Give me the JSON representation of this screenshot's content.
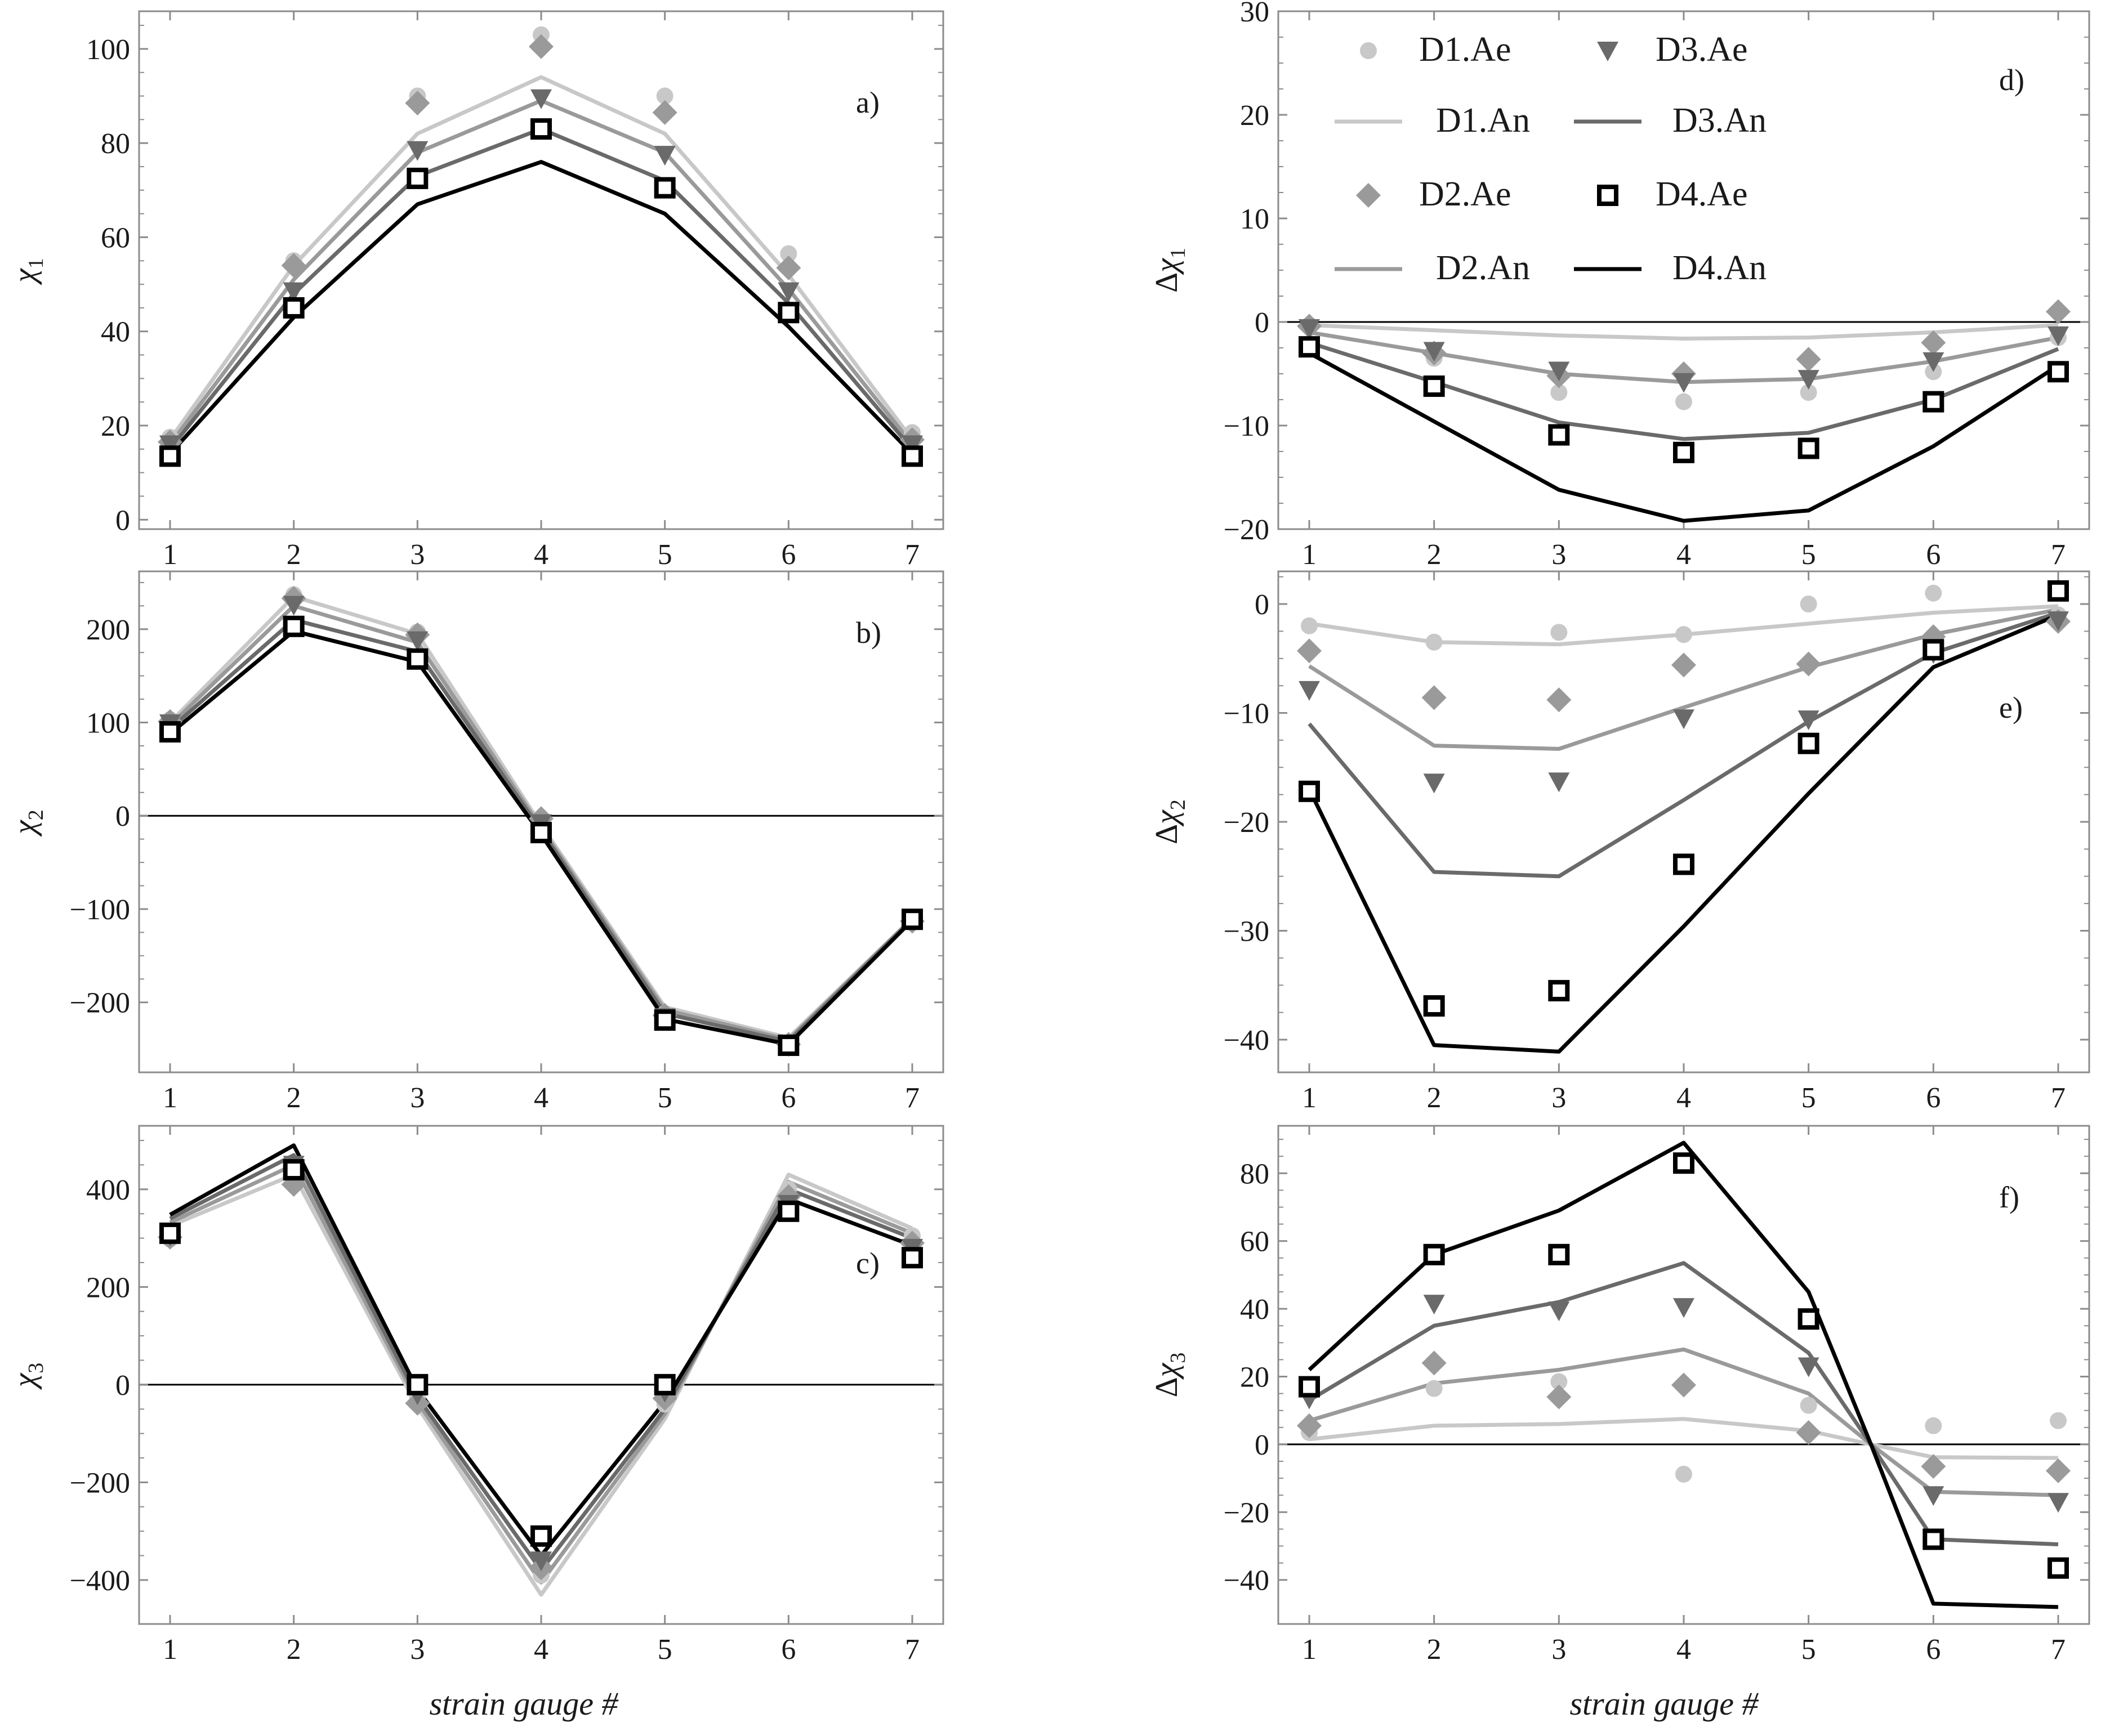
{
  "colors": {
    "D1": "#c8c8c8",
    "D2": "#9a9a9a",
    "D3": "#6a6a6a",
    "D4": "#000000",
    "frame": "#8c8c8c",
    "zero": "#000000"
  },
  "xlabel": "strain gauge #",
  "legend": [
    {
      "label": "D1.Ae",
      "series": "D1",
      "kind": "exp",
      "icon": "circle-marker-icon"
    },
    {
      "label": "D3.Ae",
      "series": "D3",
      "kind": "exp",
      "icon": "triangle-down-marker-icon"
    },
    {
      "label": "D1.An",
      "series": "D1",
      "kind": "ana",
      "icon": "line-icon"
    },
    {
      "label": "D3.An",
      "series": "D3",
      "kind": "ana",
      "icon": "line-icon"
    },
    {
      "label": "D2.Ae",
      "series": "D2",
      "kind": "exp",
      "icon": "diamond-marker-icon"
    },
    {
      "label": "D4.Ae",
      "series": "D4",
      "kind": "exp",
      "icon": "open-square-marker-icon"
    },
    {
      "label": "D2.An",
      "series": "D2",
      "kind": "ana",
      "icon": "line-icon"
    },
    {
      "label": "D4.An",
      "series": "D4",
      "kind": "ana",
      "icon": "line-icon"
    }
  ],
  "chart_data": [
    {
      "id": "a",
      "type": "line",
      "panel_tag": "a)",
      "ylabel_symbol": "χ",
      "ylabel_sub": "1",
      "ylabel_prefix": "",
      "x": [
        1,
        2,
        3,
        4,
        5,
        6,
        7
      ],
      "ylim": [
        -2,
        108
      ],
      "yticks": [
        0,
        20,
        40,
        60,
        80,
        100
      ],
      "zero_line": false,
      "series": [
        {
          "name": "D1.An",
          "key": "D1",
          "kind": "ana",
          "values": [
            17,
            54,
            82,
            94,
            82,
            52,
            17
          ]
        },
        {
          "name": "D2.An",
          "key": "D2",
          "kind": "ana",
          "values": [
            16,
            51,
            78,
            89,
            78,
            49,
            16
          ]
        },
        {
          "name": "D3.An",
          "key": "D3",
          "kind": "ana",
          "values": [
            15,
            48,
            73,
            83,
            72,
            46,
            15
          ]
        },
        {
          "name": "D4.An",
          "key": "D4",
          "kind": "ana",
          "values": [
            14,
            43,
            67,
            76,
            65,
            41,
            14
          ]
        },
        {
          "name": "D1.Ae",
          "key": "D1",
          "kind": "exp",
          "values": [
            17.5,
            55,
            90,
            103,
            90,
            56.5,
            18.5
          ]
        },
        {
          "name": "D2.Ae",
          "key": "D2",
          "kind": "exp",
          "values": [
            16.5,
            54,
            88.5,
            100.5,
            86.5,
            53.5,
            17
          ]
        },
        {
          "name": "D3.Ae",
          "key": "D3",
          "kind": "exp",
          "values": [
            16,
            48.5,
            78.5,
            89.5,
            77.5,
            48.5,
            16
          ]
        },
        {
          "name": "D4.Ae",
          "key": "D4",
          "kind": "exp",
          "values": [
            13.5,
            45,
            72.5,
            83,
            70.5,
            44,
            13.5
          ]
        }
      ]
    },
    {
      "id": "b",
      "type": "line",
      "panel_tag": "b)",
      "ylabel_symbol": "χ",
      "ylabel_sub": "2",
      "ylabel_prefix": "",
      "x": [
        1,
        2,
        3,
        4,
        5,
        6,
        7
      ],
      "ylim": [
        -275,
        262
      ],
      "yticks": [
        -200,
        -100,
        0,
        100,
        200
      ],
      "zero_line": true,
      "series": [
        {
          "name": "D1.An",
          "key": "D1",
          "kind": "ana",
          "values": [
            100,
            235,
            195,
            -10,
            -205,
            -238,
            -110
          ]
        },
        {
          "name": "D2.An",
          "key": "D2",
          "kind": "ana",
          "values": [
            97,
            225,
            186,
            -13,
            -208,
            -240,
            -110
          ]
        },
        {
          "name": "D3.An",
          "key": "D3",
          "kind": "ana",
          "values": [
            93,
            210,
            176,
            -16,
            -212,
            -242,
            -111
          ]
        },
        {
          "name": "D4.An",
          "key": "D4",
          "kind": "ana",
          "values": [
            88,
            198,
            165,
            -20,
            -218,
            -245,
            -112
          ]
        },
        {
          "name": "D1.Ae",
          "key": "D1",
          "kind": "exp",
          "values": [
            103,
            237,
            197,
            -4,
            -212,
            -245,
            -113
          ]
        },
        {
          "name": "D2.Ae",
          "key": "D2",
          "kind": "exp",
          "values": [
            101,
            233,
            194,
            -3,
            -214,
            -245,
            -113
          ]
        },
        {
          "name": "D3.Ae",
          "key": "D3",
          "kind": "exp",
          "values": [
            99,
            226,
            188,
            -8,
            -216,
            -246,
            -112
          ]
        },
        {
          "name": "D4.Ae",
          "key": "D4",
          "kind": "exp",
          "values": [
            90,
            203,
            168,
            -18,
            -219,
            -246,
            -111
          ]
        }
      ]
    },
    {
      "id": "c",
      "type": "line",
      "panel_tag": "c)",
      "ylabel_symbol": "χ",
      "ylabel_sub": "3",
      "ylabel_prefix": "",
      "x": [
        1,
        2,
        3,
        4,
        5,
        6,
        7
      ],
      "ylim": [
        -490,
        530
      ],
      "yticks": [
        -400,
        -200,
        0,
        200,
        400
      ],
      "zero_line": true,
      "series": [
        {
          "name": "D1.An",
          "key": "D1",
          "kind": "ana",
          "values": [
            325,
            430,
            -45,
            -430,
            -70,
            430,
            320
          ]
        },
        {
          "name": "D2.An",
          "key": "D2",
          "kind": "ana",
          "values": [
            332,
            450,
            -35,
            -405,
            -60,
            415,
            310
          ]
        },
        {
          "name": "D3.An",
          "key": "D3",
          "kind": "ana",
          "values": [
            340,
            470,
            -25,
            -380,
            -50,
            400,
            300
          ]
        },
        {
          "name": "D4.An",
          "key": "D4",
          "kind": "ana",
          "values": [
            348,
            490,
            -10,
            -350,
            -35,
            380,
            285
          ]
        },
        {
          "name": "D1.Ae",
          "key": "D1",
          "kind": "exp",
          "values": [
            298,
            430,
            -25,
            -390,
            -40,
            400,
            305
          ]
        },
        {
          "name": "D2.Ae",
          "key": "D2",
          "kind": "exp",
          "values": [
            302,
            410,
            -38,
            -375,
            -28,
            385,
            290
          ]
        },
        {
          "name": "D3.Ae",
          "key": "D3",
          "kind": "exp",
          "values": [
            305,
            450,
            -20,
            -360,
            -15,
            370,
            280
          ]
        },
        {
          "name": "D4.Ae",
          "key": "D4",
          "kind": "exp",
          "values": [
            310,
            440,
            0,
            -310,
            0,
            355,
            260
          ]
        }
      ]
    },
    {
      "id": "d",
      "type": "line",
      "panel_tag": "d)",
      "ylabel_symbol": "χ",
      "ylabel_sub": "1",
      "ylabel_prefix": "Δ",
      "x": [
        1,
        2,
        3,
        4,
        5,
        6,
        7
      ],
      "ylim": [
        -20,
        30
      ],
      "yticks": [
        -20,
        -10,
        0,
        10,
        20,
        30
      ],
      "zero_line": true,
      "series": [
        {
          "name": "D1.An",
          "key": "D1",
          "kind": "ana",
          "values": [
            -0.3,
            -0.8,
            -1.3,
            -1.6,
            -1.5,
            -1.0,
            -0.3
          ]
        },
        {
          "name": "D2.An",
          "key": "D2",
          "kind": "ana",
          "values": [
            -1.0,
            -3.0,
            -5.0,
            -5.8,
            -5.5,
            -3.8,
            -1.5
          ]
        },
        {
          "name": "D3.An",
          "key": "D3",
          "kind": "ana",
          "values": [
            -2.0,
            -5.8,
            -9.7,
            -11.3,
            -10.7,
            -7.5,
            -2.6
          ]
        },
        {
          "name": "D4.An",
          "key": "D4",
          "kind": "ana",
          "values": [
            -3.0,
            -9.6,
            -16.2,
            -19.2,
            -18.2,
            -12.0,
            -4.2
          ]
        },
        {
          "name": "D1.Ae",
          "key": "D1",
          "kind": "exp",
          "values": [
            -0.3,
            -3.5,
            -6.8,
            -7.7,
            -6.8,
            -4.8,
            -1.5
          ]
        },
        {
          "name": "D2.Ae",
          "key": "D2",
          "kind": "exp",
          "values": [
            -0.4,
            -3.0,
            -5.2,
            -5.0,
            -3.6,
            -2.0,
            1.0
          ]
        },
        {
          "name": "D3.Ae",
          "key": "D3",
          "kind": "exp",
          "values": [
            -0.6,
            -2.8,
            -4.7,
            -5.8,
            -5.5,
            -3.8,
            -1.3
          ]
        },
        {
          "name": "D4.Ae",
          "key": "D4",
          "kind": "exp",
          "values": [
            -2.4,
            -6.2,
            -10.9,
            -12.6,
            -12.2,
            -7.7,
            -4.8
          ]
        }
      ]
    },
    {
      "id": "e",
      "type": "line",
      "panel_tag": "e)",
      "ylabel_symbol": "χ",
      "ylabel_sub": "2",
      "ylabel_prefix": "Δ",
      "x": [
        1,
        2,
        3,
        4,
        5,
        6,
        7
      ],
      "ylim": [
        -43,
        3
      ],
      "yticks": [
        -40,
        -30,
        -20,
        -10,
        0
      ],
      "zero_line": false,
      "series": [
        {
          "name": "D1.An",
          "key": "D1",
          "kind": "ana",
          "values": [
            -1.8,
            -3.5,
            -3.7,
            -2.8,
            -1.8,
            -0.8,
            -0.2
          ]
        },
        {
          "name": "D2.An",
          "key": "D2",
          "kind": "ana",
          "values": [
            -5.7,
            -13.0,
            -13.3,
            -9.5,
            -5.8,
            -2.8,
            -0.5
          ]
        },
        {
          "name": "D3.An",
          "key": "D3",
          "kind": "ana",
          "values": [
            -11.0,
            -24.6,
            -25.0,
            -18.0,
            -10.8,
            -4.5,
            -0.8
          ]
        },
        {
          "name": "D4.An",
          "key": "D4",
          "kind": "ana",
          "values": [
            -17.0,
            -40.5,
            -41.1,
            -29.6,
            -17.4,
            -5.8,
            -1.0
          ]
        },
        {
          "name": "D1.Ae",
          "key": "D1",
          "kind": "exp",
          "values": [
            -2.0,
            -3.5,
            -2.6,
            -2.8,
            0.0,
            1.0,
            -1.0
          ]
        },
        {
          "name": "D2.Ae",
          "key": "D2",
          "kind": "exp",
          "values": [
            -4.3,
            -8.6,
            -8.8,
            -5.6,
            -5.5,
            -3.0,
            -1.6
          ]
        },
        {
          "name": "D3.Ae",
          "key": "D3",
          "kind": "exp",
          "values": [
            -7.9,
            -16.4,
            -16.3,
            -10.5,
            -10.6,
            -4.5,
            -1.5
          ]
        },
        {
          "name": "D4.Ae",
          "key": "D4",
          "kind": "exp",
          "values": [
            -17.2,
            -36.9,
            -35.5,
            -23.9,
            -12.8,
            -4.2,
            1.2
          ]
        }
      ]
    },
    {
      "id": "f",
      "type": "line",
      "panel_tag": "f)",
      "ylabel_symbol": "χ",
      "ylabel_sub": "3",
      "ylabel_prefix": "Δ",
      "x": [
        1,
        2,
        3,
        4,
        5,
        5.5,
        6,
        7
      ],
      "ylim": [
        -53,
        94
      ],
      "yticks": [
        -40,
        -20,
        0,
        20,
        40,
        60,
        80
      ],
      "zero_line": true,
      "series": [
        {
          "name": "D1.An",
          "key": "D1",
          "kind": "ana",
          "values": [
            1.5,
            5.5,
            6.0,
            7.5,
            4.0,
            0,
            -3.8,
            -4.0
          ]
        },
        {
          "name": "D2.An",
          "key": "D2",
          "kind": "ana",
          "values": [
            7.0,
            18.0,
            22.0,
            28.0,
            15.0,
            0,
            -14.0,
            -15.0
          ]
        },
        {
          "name": "D3.An",
          "key": "D3",
          "kind": "ana",
          "values": [
            13.0,
            35.0,
            42.0,
            53.5,
            27.0,
            0,
            -28.0,
            -29.5
          ]
        },
        {
          "name": "D4.An",
          "key": "D4",
          "kind": "ana",
          "values": [
            22.0,
            56.0,
            69.0,
            89.0,
            45.0,
            0,
            -47.0,
            -48.0
          ]
        },
        {
          "name": "D1.Ae",
          "key": "D1",
          "kind": "exp",
          "x": [
            1,
            2,
            3,
            4,
            5,
            6,
            7
          ],
          "values": [
            3.5,
            16.5,
            18.5,
            -8.8,
            11.5,
            5.5,
            7.0
          ]
        },
        {
          "name": "D2.Ae",
          "key": "D2",
          "kind": "exp",
          "x": [
            1,
            2,
            3,
            4,
            5,
            6,
            7
          ],
          "values": [
            5.5,
            24.0,
            14.0,
            17.5,
            3.5,
            -6.5,
            -7.8
          ]
        },
        {
          "name": "D3.Ae",
          "key": "D3",
          "kind": "exp",
          "x": [
            1,
            2,
            3,
            4,
            5,
            6,
            7
          ],
          "values": [
            13.5,
            41.5,
            39.5,
            40.5,
            23.0,
            -15.0,
            -17.0
          ]
        },
        {
          "name": "D4.Ae",
          "key": "D4",
          "kind": "exp",
          "x": [
            1,
            2,
            3,
            4,
            5,
            6,
            7
          ],
          "values": [
            17.0,
            56.0,
            56.0,
            83.0,
            37.0,
            -28.0,
            -36.5
          ]
        }
      ]
    }
  ]
}
